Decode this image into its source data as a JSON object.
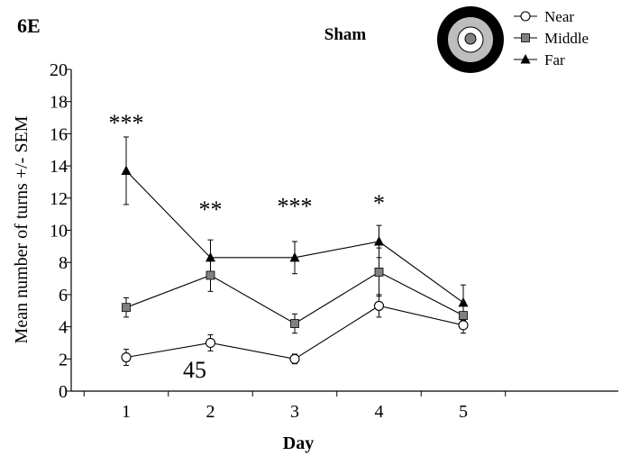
{
  "chart_data": {
    "type": "line",
    "panel_label": "6E",
    "title": "Sham",
    "xlabel": "Day",
    "ylabel": "Mean number of turns +/- SEM",
    "categories": [
      "1",
      "2",
      "3",
      "4",
      "5"
    ],
    "ylim": [
      0,
      20
    ],
    "yticks": [
      "0",
      "2",
      "4",
      "6",
      "8",
      "10",
      "12",
      "14",
      "16",
      "18",
      "20"
    ],
    "grid": false,
    "legend_position": "top-right",
    "series": [
      {
        "name": "Near",
        "marker": "circle-open",
        "values": [
          2.1,
          3.0,
          2.0,
          5.3,
          4.1
        ],
        "sem": [
          0.5,
          0.5,
          0.3,
          0.7,
          0.5
        ]
      },
      {
        "name": "Middle",
        "marker": "square-gray",
        "values": [
          5.2,
          7.2,
          4.2,
          7.4,
          4.7
        ],
        "sem": [
          0.6,
          1.0,
          0.6,
          1.5,
          0.7
        ]
      },
      {
        "name": "Far",
        "marker": "triangle-filled",
        "values": [
          13.7,
          8.3,
          8.3,
          9.3,
          5.5
        ],
        "sem": [
          2.1,
          1.1,
          1.0,
          1.0,
          1.1
        ]
      }
    ],
    "significance": [
      "***",
      "**",
      "***",
      "*",
      ""
    ],
    "annotation": "45",
    "colors": {
      "near_fill": "#ffffff",
      "middle_fill": "#808080",
      "far_fill": "#000000",
      "line": "#000000",
      "inset_outer": "#000000",
      "inset_middle": "#bdbdbd",
      "inset_inner": "#ffffff",
      "inset_dot": "#808080"
    }
  }
}
